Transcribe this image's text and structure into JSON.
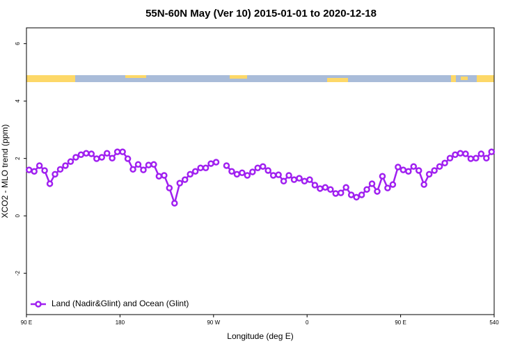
{
  "chart_data": {
    "type": "line",
    "title": "55N-60N May (Ver 10)   2015-01-01 to 2020-12-18",
    "x_label": "Longitude (deg E)",
    "y_label": "XCO2 - MLO trend (ppm)",
    "x": [
      92.5,
      97.5,
      102.5,
      107.5,
      112.5,
      117.5,
      122.5,
      127.5,
      132.5,
      137.5,
      142.5,
      147.5,
      152.5,
      157.5,
      162.5,
      167.5,
      172.5,
      177.5,
      182.5,
      187.5,
      192.5,
      197.5,
      202.5,
      207.5,
      212.5,
      217.5,
      222.5,
      227.5,
      232.5,
      237.5,
      242.5,
      247.5,
      252.5,
      257.5,
      262.5,
      267.5,
      272.5,
      277.5,
      282.5,
      287.5,
      292.5,
      297.5,
      302.5,
      307.5,
      312.5,
      317.5,
      322.5,
      327.5,
      332.5,
      337.5,
      342.5,
      347.5,
      352.5,
      357.5,
      362.5,
      367.5,
      372.5,
      377.5,
      382.5,
      387.5,
      392.5,
      397.5,
      402.5,
      407.5,
      412.5,
      417.5,
      422.5,
      427.5,
      432.5,
      437.5,
      442.5,
      447.5,
      452.5,
      457.5,
      462.5,
      467.5,
      472.5,
      477.5,
      482.5,
      487.5,
      492.5,
      497.5,
      502.5,
      507.5,
      512.5,
      517.5,
      522.5,
      527.5,
      532.5,
      537.5
    ],
    "series": [
      {
        "name": "Land (Nadir&Glint) and Ocean (Glint)",
        "color": "#a020f0",
        "values": [
          1.6,
          1.55,
          1.75,
          1.58,
          1.12,
          1.45,
          1.62,
          1.75,
          1.89,
          2.04,
          2.13,
          2.18,
          2.16,
          1.99,
          2.04,
          2.18,
          2.01,
          2.23,
          2.23,
          1.99,
          1.62,
          1.79,
          1.6,
          1.77,
          1.79,
          1.38,
          1.41,
          0.97,
          0.44,
          1.14,
          1.26,
          1.45,
          1.55,
          1.67,
          1.67,
          1.82,
          1.87,
          null,
          1.75,
          1.55,
          1.45,
          1.5,
          1.41,
          1.53,
          1.67,
          1.72,
          1.58,
          1.41,
          1.43,
          1.21,
          1.41,
          1.26,
          1.31,
          1.21,
          1.26,
          1.07,
          0.95,
          0.99,
          0.92,
          0.78,
          0.8,
          0.99,
          0.73,
          0.65,
          0.73,
          0.92,
          1.12,
          0.85,
          1.38,
          0.97,
          1.09,
          1.7,
          1.6,
          1.55,
          1.72,
          1.58,
          1.09,
          1.45,
          1.58,
          1.72,
          1.84,
          2.01,
          2.13,
          2.18,
          2.16,
          1.99,
          2.01,
          2.16,
          2.01,
          2.23
        ]
      }
    ],
    "xlim": [
      90,
      540
    ],
    "xticks": [
      {
        "value": 90,
        "label": "90 E"
      },
      180,
      {
        "value": 270,
        "label": "90 W"
      },
      {
        "value": 360,
        "label": "0"
      },
      {
        "value": 450,
        "label": "90 E"
      },
      540
    ],
    "ylim": [
      -3.44,
      6.55
    ],
    "yticks": [
      -2,
      0,
      2,
      4,
      6
    ],
    "legend": "bottom-left"
  }
}
